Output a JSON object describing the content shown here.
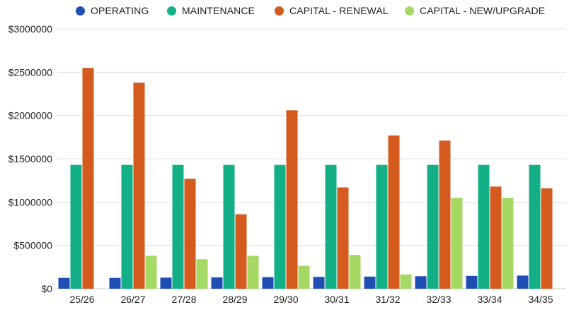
{
  "chart_data": {
    "type": "bar",
    "categories": [
      "25/26",
      "26/27",
      "27/28",
      "28/29",
      "29/30",
      "30/31",
      "31/32",
      "32/33",
      "33/34",
      "34/35"
    ],
    "series": [
      {
        "name": "OPERATING",
        "color": "#1f4fb5",
        "values": [
          125000,
          125000,
          128000,
          131000,
          134000,
          137000,
          140000,
          144000,
          148000,
          152000
        ]
      },
      {
        "name": "MAINTENANCE",
        "color": "#13b088",
        "values": [
          1430000,
          1430000,
          1430000,
          1430000,
          1430000,
          1430000,
          1430000,
          1430000,
          1430000,
          1430000
        ]
      },
      {
        "name": "CAPITAL - RENEWAL",
        "color": "#d45a1e",
        "values": [
          2550000,
          2380000,
          1270000,
          860000,
          2060000,
          1170000,
          1770000,
          1710000,
          1180000,
          1160000
        ]
      },
      {
        "name": "CAPITAL - NEW/UPGRADE",
        "color": "#a6d964",
        "values": [
          0,
          380000,
          340000,
          380000,
          265000,
          390000,
          165000,
          1050000,
          1050000,
          0
        ]
      }
    ],
    "ylim": [
      0,
      3000000
    ],
    "yticks": [
      {
        "value": 0,
        "label": "$0"
      },
      {
        "value": 500000,
        "label": "$500000"
      },
      {
        "value": 1000000,
        "label": "$1000000"
      },
      {
        "value": 1500000,
        "label": "$1500000"
      },
      {
        "value": 2000000,
        "label": "$2000000"
      },
      {
        "value": 2500000,
        "label": "$2500000"
      },
      {
        "value": 3000000,
        "label": "$3000000"
      }
    ],
    "grid": true,
    "legend_position": "top"
  }
}
